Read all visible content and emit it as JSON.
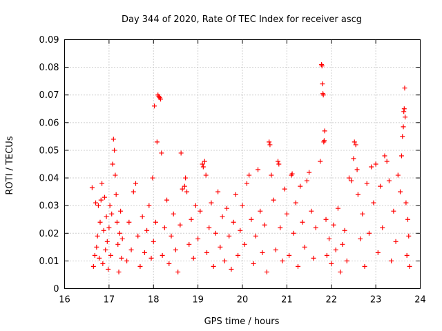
{
  "chart_data": {
    "type": "scatter",
    "title": "Day 344 of 2020, Rate Of TEC Index for receiver ascg",
    "xlabel": "GPS time / hours",
    "ylabel": "ROTI / TECUs",
    "xlim": [
      16,
      24
    ],
    "ylim": [
      0,
      0.09
    ],
    "xticks": [
      "16",
      "17",
      "18",
      "19",
      "20",
      "21",
      "22",
      "23",
      "24"
    ],
    "yticks": [
      "0",
      "0.01",
      "0.02",
      "0.03",
      "0.04",
      "0.05",
      "0.06",
      "0.07",
      "0.08",
      "0.09"
    ],
    "grid": true,
    "marker": "+",
    "series": [
      {
        "name": "ROTI",
        "color": "#ff0000",
        "points": [
          [
            16.62,
            0.0365
          ],
          [
            16.65,
            0.008
          ],
          [
            16.68,
            0.012
          ],
          [
            16.7,
            0.031
          ],
          [
            16.72,
            0.015
          ],
          [
            16.74,
            0.019
          ],
          [
            16.76,
            0.03
          ],
          [
            16.78,
            0.011
          ],
          [
            16.8,
            0.024
          ],
          [
            16.82,
            0.032
          ],
          [
            16.84,
            0.038
          ],
          [
            16.86,
            0.009
          ],
          [
            16.88,
            0.021
          ],
          [
            16.9,
            0.033
          ],
          [
            16.92,
            0.014
          ],
          [
            16.94,
            0.026
          ],
          [
            16.96,
            0.017
          ],
          [
            16.98,
            0.007
          ],
          [
            17.0,
            0.022
          ],
          [
            17.02,
            0.03
          ],
          [
            17.04,
            0.012
          ],
          [
            17.06,
            0.027
          ],
          [
            17.08,
            0.045
          ],
          [
            17.1,
            0.054
          ],
          [
            17.12,
            0.05
          ],
          [
            17.14,
            0.041
          ],
          [
            17.16,
            0.034
          ],
          [
            17.18,
            0.024
          ],
          [
            17.2,
            0.016
          ],
          [
            17.22,
            0.006
          ],
          [
            17.24,
            0.02
          ],
          [
            17.26,
            0.028
          ],
          [
            17.28,
            0.011
          ],
          [
            17.3,
            0.018
          ],
          [
            17.4,
            0.01
          ],
          [
            17.45,
            0.024
          ],
          [
            17.5,
            0.014
          ],
          [
            17.55,
            0.035
          ],
          [
            17.6,
            0.038
          ],
          [
            17.65,
            0.019
          ],
          [
            17.7,
            0.008
          ],
          [
            17.75,
            0.026
          ],
          [
            17.8,
            0.013
          ],
          [
            17.85,
            0.021
          ],
          [
            17.9,
            0.03
          ],
          [
            17.95,
            0.011
          ],
          [
            17.98,
            0.04
          ],
          [
            18.0,
            0.017
          ],
          [
            18.02,
            0.066
          ],
          [
            18.05,
            0.024
          ],
          [
            18.08,
            0.053
          ],
          [
            18.1,
            0.07
          ],
          [
            18.12,
            0.0695
          ],
          [
            18.14,
            0.069
          ],
          [
            18.16,
            0.0685
          ],
          [
            18.18,
            0.049
          ],
          [
            18.2,
            0.012
          ],
          [
            18.25,
            0.022
          ],
          [
            18.3,
            0.032
          ],
          [
            18.35,
            0.009
          ],
          [
            18.4,
            0.019
          ],
          [
            18.45,
            0.027
          ],
          [
            18.5,
            0.014
          ],
          [
            18.55,
            0.006
          ],
          [
            18.6,
            0.023
          ],
          [
            18.62,
            0.049
          ],
          [
            18.65,
            0.036
          ],
          [
            18.7,
            0.037
          ],
          [
            18.72,
            0.04
          ],
          [
            18.75,
            0.035
          ],
          [
            18.8,
            0.016
          ],
          [
            18.85,
            0.025
          ],
          [
            18.9,
            0.011
          ],
          [
            18.95,
            0.03
          ],
          [
            19.0,
            0.018
          ],
          [
            19.05,
            0.028
          ],
          [
            19.1,
            0.045
          ],
          [
            19.12,
            0.044
          ],
          [
            19.15,
            0.046
          ],
          [
            19.18,
            0.041
          ],
          [
            19.2,
            0.013
          ],
          [
            19.25,
            0.022
          ],
          [
            19.3,
            0.031
          ],
          [
            19.35,
            0.008
          ],
          [
            19.4,
            0.02
          ],
          [
            19.45,
            0.035
          ],
          [
            19.5,
            0.015
          ],
          [
            19.55,
            0.026
          ],
          [
            19.6,
            0.01
          ],
          [
            19.65,
            0.029
          ],
          [
            19.7,
            0.019
          ],
          [
            19.75,
            0.007
          ],
          [
            19.8,
            0.024
          ],
          [
            19.85,
            0.034
          ],
          [
            19.9,
            0.012
          ],
          [
            19.95,
            0.021
          ],
          [
            20.0,
            0.03
          ],
          [
            20.05,
            0.016
          ],
          [
            20.1,
            0.038
          ],
          [
            20.15,
            0.041
          ],
          [
            20.2,
            0.025
          ],
          [
            20.25,
            0.009
          ],
          [
            20.3,
            0.019
          ],
          [
            20.35,
            0.043
          ],
          [
            20.4,
            0.028
          ],
          [
            20.45,
            0.013
          ],
          [
            20.5,
            0.023
          ],
          [
            20.55,
            0.006
          ],
          [
            20.6,
            0.053
          ],
          [
            20.62,
            0.052
          ],
          [
            20.65,
            0.041
          ],
          [
            20.7,
            0.032
          ],
          [
            20.75,
            0.014
          ],
          [
            20.8,
            0.046
          ],
          [
            20.82,
            0.045
          ],
          [
            20.85,
            0.022
          ],
          [
            20.9,
            0.01
          ],
          [
            20.95,
            0.036
          ],
          [
            21.0,
            0.027
          ],
          [
            21.05,
            0.012
          ],
          [
            21.1,
            0.041
          ],
          [
            21.12,
            0.0415
          ],
          [
            21.15,
            0.02
          ],
          [
            21.2,
            0.031
          ],
          [
            21.25,
            0.008
          ],
          [
            21.3,
            0.037
          ],
          [
            21.35,
            0.024
          ],
          [
            21.4,
            0.015
          ],
          [
            21.45,
            0.039
          ],
          [
            21.5,
            0.042
          ],
          [
            21.55,
            0.028
          ],
          [
            21.6,
            0.011
          ],
          [
            21.65,
            0.022
          ],
          [
            21.75,
            0.046
          ],
          [
            21.78,
            0.081
          ],
          [
            21.79,
            0.0805
          ],
          [
            21.8,
            0.074
          ],
          [
            21.81,
            0.0705
          ],
          [
            21.82,
            0.07
          ],
          [
            21.83,
            0.053
          ],
          [
            21.84,
            0.0535
          ],
          [
            21.85,
            0.057
          ],
          [
            21.88,
            0.025
          ],
          [
            21.9,
            0.012
          ],
          [
            21.95,
            0.018
          ],
          [
            22.0,
            0.009
          ],
          [
            22.05,
            0.023
          ],
          [
            22.1,
            0.014
          ],
          [
            22.15,
            0.029
          ],
          [
            22.2,
            0.006
          ],
          [
            22.25,
            0.016
          ],
          [
            22.3,
            0.021
          ],
          [
            22.35,
            0.01
          ],
          [
            22.4,
            0.04
          ],
          [
            22.45,
            0.039
          ],
          [
            22.5,
            0.047
          ],
          [
            22.52,
            0.053
          ],
          [
            22.55,
            0.052
          ],
          [
            22.58,
            0.043
          ],
          [
            22.6,
            0.034
          ],
          [
            22.65,
            0.018
          ],
          [
            22.7,
            0.027
          ],
          [
            22.75,
            0.008
          ],
          [
            22.8,
            0.038
          ],
          [
            22.85,
            0.02
          ],
          [
            22.9,
            0.044
          ],
          [
            22.95,
            0.031
          ],
          [
            23.0,
            0.045
          ],
          [
            23.05,
            0.013
          ],
          [
            23.1,
            0.037
          ],
          [
            23.15,
            0.022
          ],
          [
            23.2,
            0.048
          ],
          [
            23.25,
            0.046
          ],
          [
            23.3,
            0.039
          ],
          [
            23.35,
            0.01
          ],
          [
            23.4,
            0.028
          ],
          [
            23.45,
            0.017
          ],
          [
            23.5,
            0.041
          ],
          [
            23.55,
            0.035
          ],
          [
            23.58,
            0.048
          ],
          [
            23.6,
            0.055
          ],
          [
            23.62,
            0.0585
          ],
          [
            23.63,
            0.064
          ],
          [
            23.64,
            0.065
          ],
          [
            23.65,
            0.0725
          ],
          [
            23.66,
            0.062
          ],
          [
            23.68,
            0.031
          ],
          [
            23.7,
            0.012
          ],
          [
            23.72,
            0.025
          ],
          [
            23.74,
            0.019
          ],
          [
            23.76,
            0.008
          ]
        ]
      }
    ]
  }
}
